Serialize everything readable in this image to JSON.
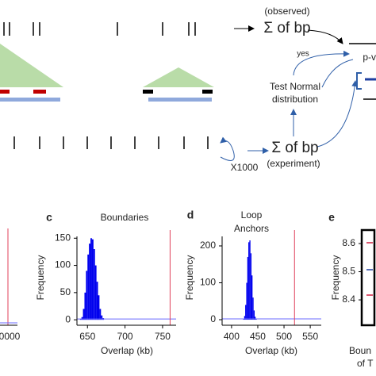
{
  "diagram": {
    "observed": "(observed)",
    "sum_observed": "Σ of bp",
    "pvalue": "p-v",
    "yes": "yes",
    "test_line1": "Test Normal",
    "test_line2": "distribution",
    "sum_experiment": "Σ of bp",
    "experiment": "(experiment)",
    "repeat": "X1000"
  },
  "panel_b_fragment": {
    "tick_label": "0000"
  },
  "chart_data": [
    {
      "type": "histogram",
      "panel": "c",
      "title": [
        "Boundaries"
      ],
      "xlabel": [
        "Overlap (kb)"
      ],
      "ylabel": "Frequency",
      "bins": [
        640,
        642,
        644,
        646,
        648,
        650,
        652,
        654,
        656,
        658,
        660,
        662,
        664,
        666,
        668,
        670,
        672
      ],
      "values": [
        2,
        5,
        20,
        50,
        90,
        120,
        140,
        150,
        148,
        130,
        100,
        70,
        45,
        20,
        8,
        3
      ],
      "color": "#0000ee",
      "observed": 760,
      "observed_color": "#e0405a",
      "xlim": [
        636,
        768
      ],
      "xticks": [
        650,
        700,
        750
      ],
      "ylim": [
        -10,
        165
      ],
      "yticks": [
        0,
        50,
        100,
        150
      ]
    },
    {
      "type": "histogram",
      "panel": "d",
      "title": [
        "Loop",
        "Anchors"
      ],
      "xlabel": [
        "Overlap (kb)"
      ],
      "ylabel": "Frequency",
      "bins": [
        422,
        424,
        426,
        428,
        430,
        432,
        434,
        436,
        438,
        440,
        442,
        444,
        446,
        448
      ],
      "values": [
        3,
        10,
        40,
        100,
        170,
        210,
        215,
        180,
        120,
        60,
        25,
        8,
        2
      ],
      "color": "#0000ee",
      "observed": 520,
      "observed_color": "#e0405a",
      "xlim": [
        382,
        571
      ],
      "xticks": [
        400,
        450,
        500,
        550
      ],
      "ylim": [
        -15,
        243
      ],
      "yticks": [
        0,
        100,
        200
      ]
    },
    {
      "type": "box",
      "panel": "e",
      "title": [],
      "xlabel": [
        "Boun",
        "of T"
      ],
      "ylabel": "Frequency",
      "ylim": [
        8.31,
        8.648
      ],
      "yticks": [
        8.4,
        8.5,
        8.6
      ]
    }
  ]
}
